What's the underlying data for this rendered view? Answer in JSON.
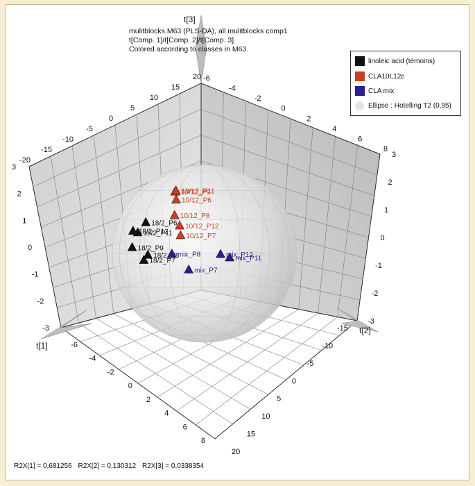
{
  "chart_data": {
    "type": "scatter",
    "title_lines": [
      "mulitblocks.M63 (PLS-DA), all mulitblocks comp1",
      "t[Comp. 1]/t[Comp. 2]/t[Comp. 3]",
      "Colored according to classes in M63"
    ],
    "axes": {
      "t1": {
        "label": "t[1]",
        "ticks": [
          "-6",
          "-4",
          "-2",
          "0",
          "2",
          "4",
          "6",
          "8"
        ]
      },
      "t2": {
        "label": "t[2]",
        "ticks": [
          "-15",
          "-10",
          "-5",
          "0",
          "5",
          "10",
          "15",
          "20"
        ]
      },
      "t3": {
        "label": "t[3]",
        "ticks": [
          "-3",
          "-2",
          "-1",
          "0",
          "1",
          "2",
          "3"
        ]
      },
      "top_left_ticks": [
        "-20",
        "-15",
        "-10",
        "-5",
        "0",
        "5",
        "10",
        "15",
        "20"
      ],
      "top_right_ticks": [
        "-6",
        "-4",
        "-2",
        "0",
        "2",
        "4",
        "6",
        "8"
      ],
      "back_right_t3_ticks": [
        "-3",
        "-2",
        "-1",
        "0",
        "1",
        "2",
        "3"
      ]
    },
    "legend": [
      {
        "label": "linoleic acid (témoins)",
        "color": "#111111"
      },
      {
        "label": "CLA10t,12c",
        "color": "#c8401e"
      },
      {
        "label": "CLA mix",
        "color": "#2a1f8a"
      },
      {
        "label": "Ellipse : Hotelling T2 (0,95)",
        "color": "#e4e4e4"
      }
    ],
    "series": [
      {
        "name": "linoleic acid (témoins)",
        "color": "#111111",
        "points": [
          {
            "label": "18/2_P9",
            "t1": -5.2,
            "t2": -9,
            "t3": -0.7
          },
          {
            "label": "18/2_P8",
            "t1": -4.2,
            "t2": -7,
            "t3": -1.0
          },
          {
            "label": "18/2_P7",
            "t1": -4.3,
            "t2": -7.8,
            "t3": -1.3
          },
          {
            "label": "18/2_P11",
            "t1": -5.0,
            "t2": -8,
            "t3": 0.2
          },
          {
            "label": "18/2_P12",
            "t1": -5.3,
            "t2": -8.6,
            "t3": 0.25
          },
          {
            "label": "18/2_P6",
            "t1": -5.1,
            "t2": -5.8,
            "t3": 0.7
          }
        ]
      },
      {
        "name": "CLA10t,12c",
        "color": "#c8401e",
        "points": [
          {
            "label": "10/12_P9",
            "t1": -3.0,
            "t2": -2.5,
            "t3": 2.9
          },
          {
            "label": "10/12_P6",
            "t1": -2.7,
            "t2": -2.8,
            "t3": 2.5
          },
          {
            "label": "10/12_P11",
            "t1": -4.2,
            "t2": 0,
            "t3": 2.6
          },
          {
            "label": "10/12_P8",
            "t1": -2.8,
            "t2": -3,
            "t3": 1.55
          },
          {
            "label": "10/12_P12",
            "t1": -2.4,
            "t2": -2.5,
            "t3": 1.0
          },
          {
            "label": "10/12_P7",
            "t1": -2.6,
            "t2": -1.9,
            "t3": 0.35
          }
        ]
      },
      {
        "name": "CLA mix",
        "color": "#2a1f8a",
        "points": [
          {
            "label": "mix_P8",
            "t1": -2.0,
            "t2": -5.2,
            "t3": -0.5
          },
          {
            "label": "mix_P7",
            "t1": 0.0,
            "t2": -4.8,
            "t3": -1.0
          },
          {
            "label": "mix_P12",
            "t1": -0.1,
            "t2": 3.3,
            "t3": -0.4
          },
          {
            "label": "mix_P11",
            "t1": 0.2,
            "t2": 5.0,
            "t3": -0.6
          }
        ]
      }
    ]
  },
  "footer": {
    "r2x_1": "R2X[1] = 0,681256",
    "r2x_2": "R2X[2] = 0,130312",
    "r2x_3": "R2X[3] = 0,0338354"
  }
}
